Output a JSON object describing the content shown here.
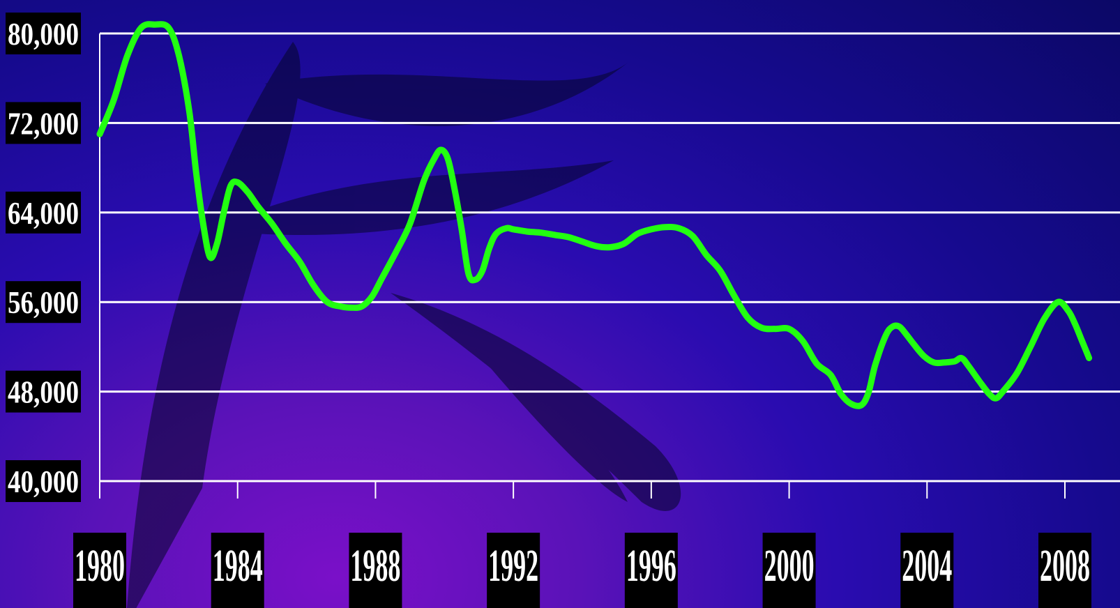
{
  "chart_data": {
    "type": "line",
    "title": "",
    "xlabel": "",
    "ylabel": "",
    "x_ticks": [
      "1980",
      "1984",
      "1988",
      "1992",
      "1996",
      "2000",
      "2004",
      "2008"
    ],
    "y_ticks": [
      "40,000",
      "48,000",
      "56,000",
      "64,000",
      "72,000",
      "80,000"
    ],
    "xlim": [
      1980,
      2008.8
    ],
    "ylim": [
      40000,
      80000
    ],
    "grid": true,
    "series": [
      {
        "name": "",
        "color": "#22ff11",
        "x": [
          1980,
          1980.4,
          1980.8,
          1981.2,
          1981.6,
          1982,
          1982.3,
          1982.6,
          1982.8,
          1983,
          1983.2,
          1983.4,
          1983.6,
          1983.8,
          1984,
          1984.3,
          1984.6,
          1985,
          1985.4,
          1985.8,
          1986.2,
          1986.6,
          1987,
          1987.3,
          1987.6,
          1987.9,
          1988.2,
          1988.6,
          1989,
          1989.4,
          1989.7,
          1989.9,
          1990.1,
          1990.3,
          1990.5,
          1990.7,
          1990.9,
          1991.1,
          1991.3,
          1991.5,
          1991.8,
          1992,
          1992.4,
          1992.8,
          1993.2,
          1993.6,
          1994,
          1994.4,
          1994.8,
          1995.2,
          1995.6,
          1996,
          1996.4,
          1996.8,
          1997.2,
          1997.6,
          1998,
          1998.4,
          1998.8,
          1999.2,
          1999.6,
          2000,
          2000.4,
          2000.8,
          2001.2,
          2001.5,
          2001.8,
          2002.1,
          2002.3,
          2002.5,
          2002.8,
          2003,
          2003.2,
          2003.4,
          2003.6,
          2003.9,
          2004.2,
          2004.5,
          2004.8,
          2005,
          2005.2,
          2005.5,
          2005.8,
          2006,
          2006.2,
          2006.6,
          2007,
          2007.4,
          2007.8,
          2008.1,
          2008.3,
          2008.5,
          2008.7
        ],
        "y": [
          71000,
          74000,
          78000,
          80500,
          80800,
          80500,
          78000,
          73000,
          67500,
          63000,
          60000,
          61200,
          64000,
          66400,
          66700,
          65800,
          64500,
          63000,
          61200,
          59600,
          57500,
          56000,
          55600,
          55500,
          55600,
          56500,
          58200,
          60500,
          63000,
          66800,
          68800,
          69600,
          68800,
          66000,
          62500,
          58500,
          58000,
          58800,
          60800,
          62100,
          62600,
          62500,
          62300,
          62200,
          62000,
          61800,
          61400,
          61000,
          60900,
          61200,
          62100,
          62500,
          62700,
          62600,
          61900,
          60200,
          58800,
          56600,
          54600,
          53700,
          53600,
          53600,
          52500,
          50500,
          49500,
          47800,
          46900,
          46800,
          47900,
          50400,
          53000,
          53800,
          53800,
          53100,
          52300,
          51200,
          50600,
          50600,
          50700,
          51000,
          50300,
          49000,
          47800,
          47400,
          48000,
          49600,
          52000,
          54500,
          56000,
          55200,
          54000,
          52500,
          51000
        ]
      }
    ]
  }
}
